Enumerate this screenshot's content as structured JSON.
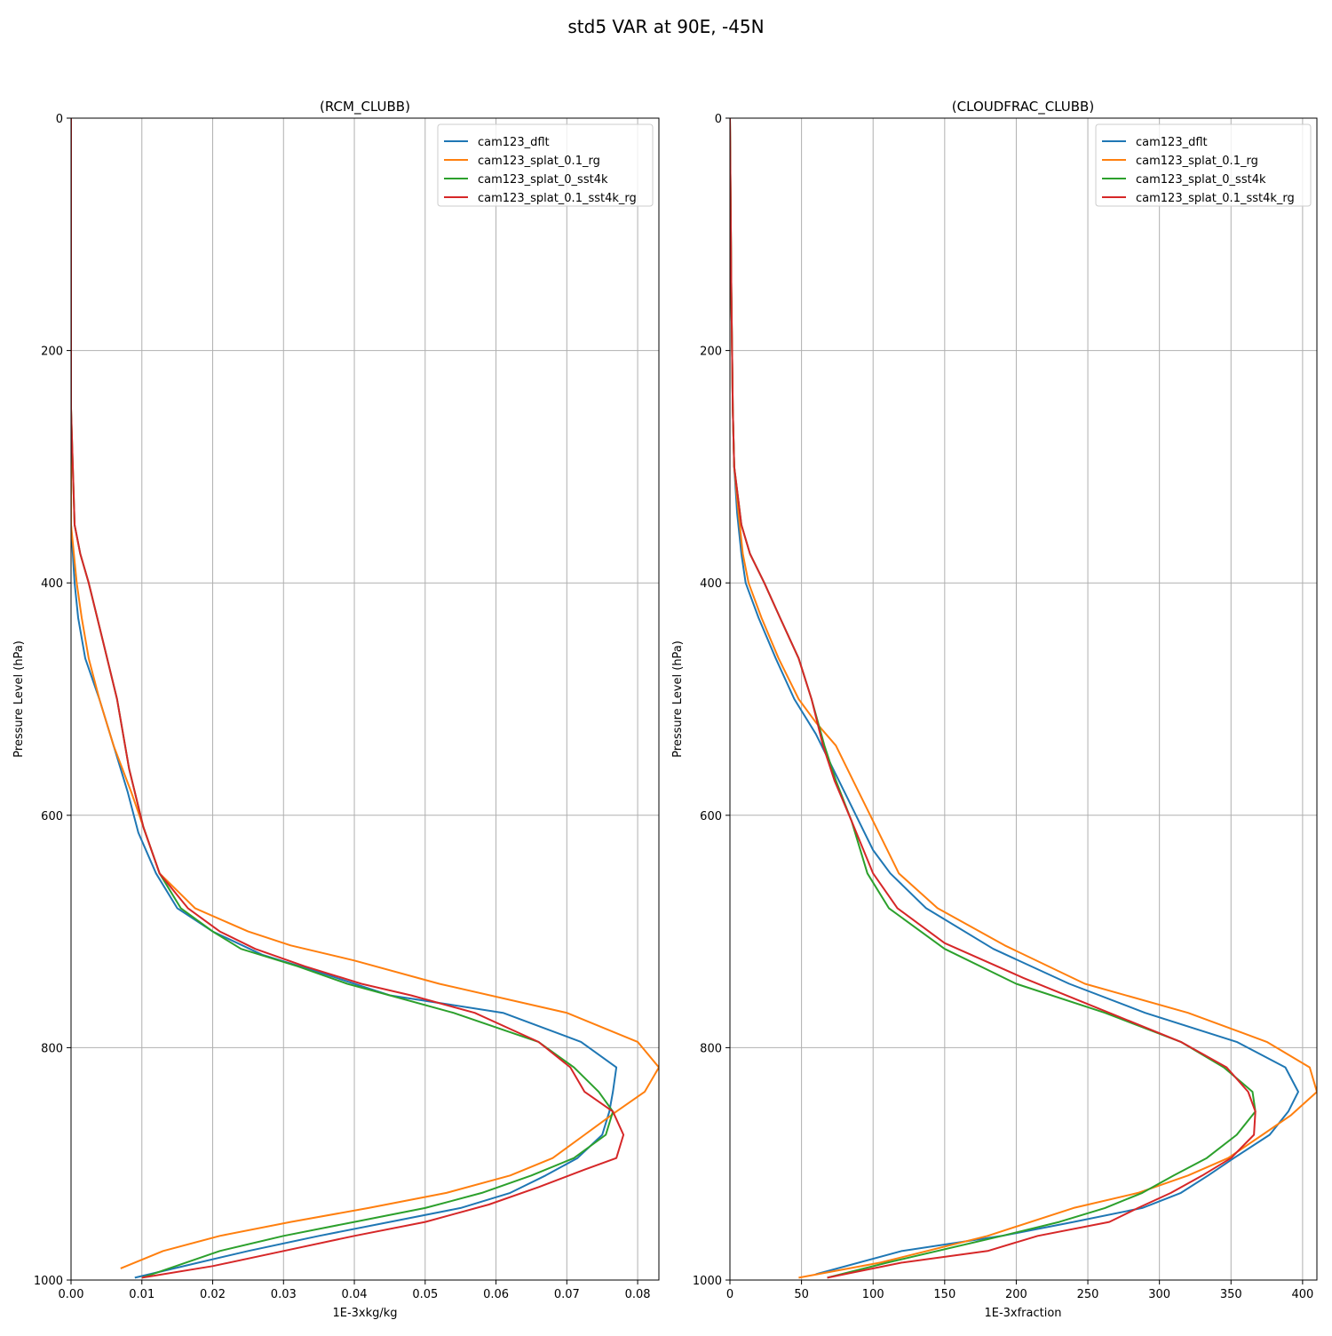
{
  "figure": {
    "suptitle": "std5 VAR at 90E, -45N"
  },
  "chart_data": [
    {
      "type": "line",
      "title": "(RCM_CLUBB)",
      "xlabel": "1E-3xkg/kg",
      "ylabel": "Pressure Level (hPa)",
      "xlim": [
        0,
        0.083
      ],
      "ylim": [
        1000,
        0
      ],
      "xticks": [
        0,
        0.01,
        0.02,
        0.03,
        0.04,
        0.05,
        0.06,
        0.07,
        0.08
      ],
      "xtick_labels": [
        "0.00",
        "0.01",
        "0.02",
        "0.03",
        "0.04",
        "0.05",
        "0.06",
        "0.07",
        "0.08"
      ],
      "yticks": [
        0,
        200,
        400,
        600,
        800,
        1000
      ],
      "ytick_labels": [
        "0",
        "200",
        "400",
        "600",
        "800",
        "1000"
      ],
      "grid": true,
      "legend_position": "top-right",
      "series": [
        {
          "name": "cam123_dflt",
          "color": "#1f77b4",
          "x": [
            0,
            0,
            0,
            0,
            0.0005,
            0.001,
            0.002,
            0.004,
            0.006,
            0.008,
            0.0095,
            0.012,
            0.015,
            0.02,
            0.027,
            0.035,
            0.045,
            0.061,
            0.072,
            0.077,
            0.0765,
            0.076,
            0.075,
            0.0715,
            0.067,
            0.062,
            0.055,
            0.045,
            0.035,
            0.025,
            0.018,
            0.009
          ],
          "y": [
            0,
            200,
            300,
            350,
            400,
            430,
            465,
            500,
            540,
            580,
            615,
            650,
            680,
            700,
            720,
            735,
            755,
            770,
            795,
            817,
            838,
            855,
            875,
            895,
            910,
            925,
            938,
            950,
            962,
            975,
            985,
            998
          ]
        },
        {
          "name": "cam123_splat_0.1_rg",
          "color": "#ff7f0e",
          "x": [
            0,
            0,
            0,
            0,
            0.0008,
            0.0015,
            0.0025,
            0.004,
            0.006,
            0.0085,
            0.0105,
            0.0125,
            0.0175,
            0.025,
            0.031,
            0.04,
            0.052,
            0.07,
            0.08,
            0.083,
            0.081,
            0.077,
            0.0725,
            0.068,
            0.062,
            0.053,
            0.042,
            0.031,
            0.021,
            0.013,
            0.007
          ],
          "y": [
            0,
            200,
            300,
            350,
            400,
            430,
            465,
            500,
            540,
            580,
            615,
            650,
            680,
            700,
            712,
            725,
            745,
            770,
            795,
            817,
            838,
            855,
            875,
            895,
            910,
            925,
            938,
            950,
            962,
            975,
            990
          ]
        },
        {
          "name": "cam123_splat_0_sst4k",
          "color": "#2ca02c",
          "x": [
            0,
            0,
            0.0005,
            0.0013,
            0.0025,
            0.0045,
            0.0065,
            0.0082,
            0.0102,
            0.0125,
            0.0155,
            0.02,
            0.024,
            0.032,
            0.039,
            0.045,
            0.054,
            0.066,
            0.071,
            0.0745,
            0.0765,
            0.0755,
            0.071,
            0.065,
            0.058,
            0.05,
            0.04,
            0.03,
            0.021,
            0.01
          ],
          "y": [
            0,
            250,
            350,
            375,
            400,
            450,
            500,
            560,
            610,
            650,
            680,
            700,
            715,
            730,
            745,
            755,
            770,
            795,
            817,
            838,
            855,
            875,
            895,
            910,
            925,
            938,
            950,
            962,
            975,
            998
          ]
        },
        {
          "name": "cam123_splat_0.1_sst4k_rg",
          "color": "#d62728",
          "x": [
            0,
            0,
            0.0005,
            0.0013,
            0.0025,
            0.0045,
            0.0065,
            0.0082,
            0.0102,
            0.0125,
            0.0165,
            0.021,
            0.026,
            0.033,
            0.041,
            0.048,
            0.057,
            0.066,
            0.0705,
            0.0725,
            0.0765,
            0.078,
            0.077,
            0.0725,
            0.066,
            0.059,
            0.05,
            0.04,
            0.03,
            0.02,
            0.01
          ],
          "y": [
            0,
            250,
            350,
            375,
            400,
            450,
            500,
            560,
            610,
            650,
            680,
            700,
            715,
            730,
            745,
            755,
            770,
            795,
            817,
            838,
            855,
            875,
            895,
            905,
            920,
            935,
            950,
            962,
            975,
            988,
            998
          ]
        }
      ]
    },
    {
      "type": "line",
      "title": "(CLOUDFRAC_CLUBB)",
      "xlabel": "1E-3xfraction",
      "ylabel": "Pressure Level (hPa)",
      "xlim": [
        0,
        410
      ],
      "ylim": [
        1000,
        0
      ],
      "xticks": [
        0,
        50,
        100,
        150,
        200,
        250,
        300,
        350,
        400
      ],
      "xtick_labels": [
        "0",
        "50",
        "100",
        "150",
        "200",
        "250",
        "300",
        "350",
        "400"
      ],
      "yticks": [
        0,
        200,
        400,
        600,
        800,
        1000
      ],
      "ytick_labels": [
        "0",
        "200",
        "400",
        "600",
        "800",
        "1000"
      ],
      "grid": true,
      "legend_position": "top-right",
      "series": [
        {
          "name": "cam123_dflt",
          "color": "#1f77b4",
          "x": [
            0,
            1,
            2,
            3,
            5,
            8,
            11,
            20,
            32,
            45,
            60,
            70,
            80,
            90,
            100,
            112,
            137,
            184,
            237,
            290,
            354,
            388,
            397,
            390,
            377,
            352,
            334,
            315,
            288,
            240,
            190,
            120,
            60
          ],
          "y": [
            0,
            150,
            250,
            300,
            340,
            375,
            400,
            430,
            465,
            500,
            530,
            555,
            580,
            605,
            630,
            650,
            680,
            715,
            745,
            770,
            795,
            817,
            838,
            855,
            875,
            895,
            910,
            925,
            938,
            950,
            962,
            975,
            995
          ]
        },
        {
          "name": "cam123_splat_0.1_rg",
          "color": "#ff7f0e",
          "x": [
            0,
            1,
            2,
            3,
            6,
            9,
            13,
            22,
            34,
            48,
            60,
            74,
            86,
            100,
            118,
            145,
            192,
            248,
            320,
            375,
            405,
            410,
            392,
            372,
            348,
            320,
            285,
            240,
            180,
            105,
            48
          ],
          "y": [
            0,
            150,
            250,
            300,
            340,
            375,
            400,
            430,
            465,
            500,
            520,
            540,
            570,
            605,
            650,
            680,
            712,
            745,
            770,
            795,
            817,
            838,
            858,
            875,
            895,
            910,
            925,
            938,
            962,
            985,
            998
          ]
        },
        {
          "name": "cam123_splat_0_sst4k",
          "color": "#2ca02c",
          "x": [
            0,
            1,
            2,
            3,
            8,
            14,
            24,
            35,
            48,
            57,
            66,
            74,
            85,
            96,
            111,
            150,
            200,
            262,
            315,
            345,
            365,
            367,
            354,
            333,
            310,
            288,
            262,
            230,
            190,
            110,
            68
          ],
          "y": [
            0,
            150,
            250,
            300,
            350,
            375,
            400,
            430,
            465,
            500,
            540,
            570,
            605,
            650,
            680,
            715,
            745,
            770,
            795,
            817,
            838,
            855,
            875,
            895,
            910,
            925,
            938,
            950,
            962,
            985,
            998
          ]
        },
        {
          "name": "cam123_splat_0.1_sst4k_rg",
          "color": "#d62728",
          "x": [
            0,
            1,
            2,
            3,
            8,
            14,
            24,
            35,
            48,
            57,
            65,
            73,
            85,
            100,
            117,
            150,
            205,
            265,
            315,
            347,
            362,
            367,
            366,
            350,
            330,
            308,
            285,
            265,
            215,
            180,
            120,
            68
          ],
          "y": [
            0,
            150,
            250,
            300,
            350,
            375,
            400,
            430,
            465,
            500,
            540,
            570,
            605,
            650,
            680,
            710,
            740,
            770,
            795,
            817,
            838,
            855,
            875,
            895,
            910,
            925,
            938,
            950,
            962,
            975,
            985,
            998
          ]
        }
      ]
    }
  ]
}
